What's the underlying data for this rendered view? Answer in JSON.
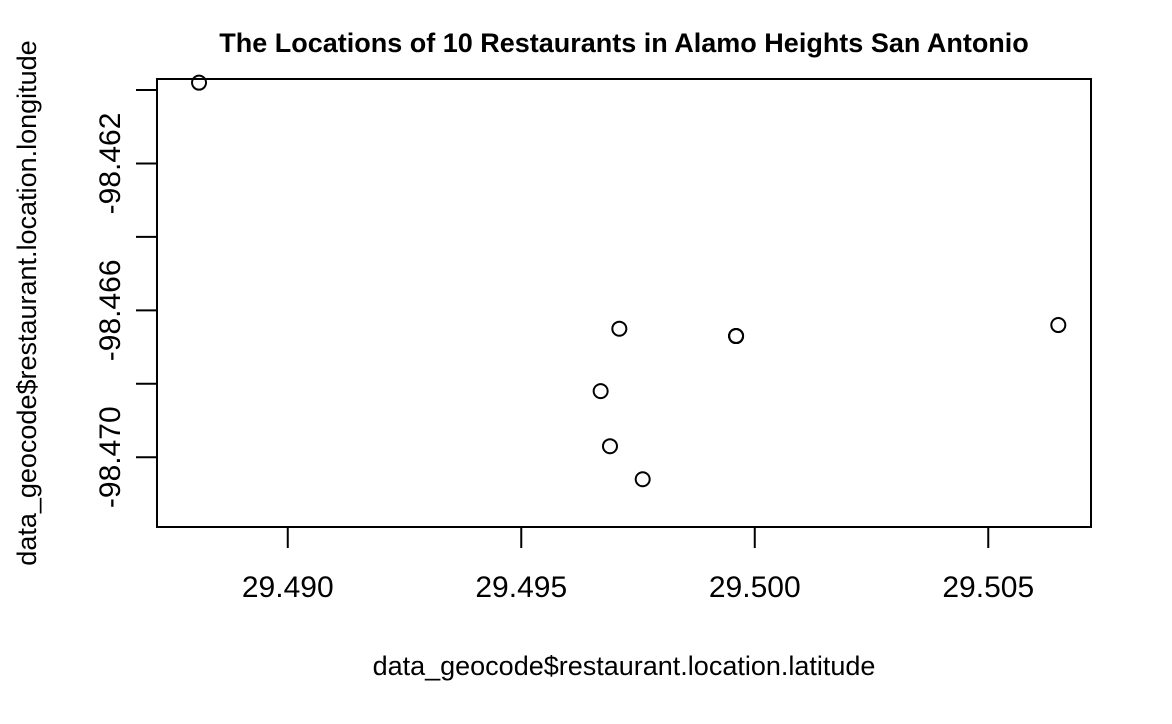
{
  "chart_data": {
    "type": "scatter",
    "title": "The Locations of 10 Restaurants in Alamo Heights San Antonio",
    "xlabel": "data_geocode$restaurant.location.latitude",
    "ylabel": "data_geocode$restaurant.location.longitude",
    "xlim": [
      29.4872,
      29.5072
    ],
    "ylim": [
      -98.4719,
      -98.4597
    ],
    "x_ticks": [
      29.49,
      29.495,
      29.5,
      29.505
    ],
    "x_tick_labels": [
      "29.490",
      "29.495",
      "29.500",
      "29.505"
    ],
    "y_ticks": [
      -98.47,
      -98.468,
      -98.466,
      -98.464,
      -98.462,
      -98.46
    ],
    "y_tick_labels": [
      "-98.470",
      "",
      "-98.466",
      "",
      "-98.462",
      ""
    ],
    "grid": false,
    "x": [
      29.4881,
      29.4967,
      29.4969,
      29.4971,
      29.4976,
      29.4996,
      29.4996,
      29.4996,
      29.5065
    ],
    "y": [
      -98.4598,
      -98.4682,
      -98.4697,
      -98.4665,
      -98.4706,
      -98.4667,
      -98.4667,
      -98.4667,
      -98.4664
    ]
  }
}
